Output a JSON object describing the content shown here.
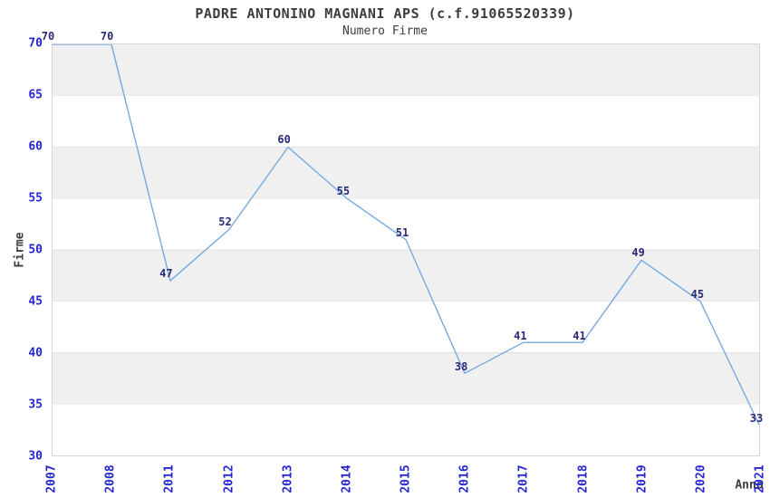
{
  "chart_data": {
    "type": "line",
    "title": "PADRE ANTONINO MAGNANI APS (c.f.91065520339)",
    "subtitle": "Numero Firme",
    "xlabel": "Anno",
    "ylabel": "Firme",
    "categories": [
      "2007",
      "2008",
      "2011",
      "2012",
      "2013",
      "2014",
      "2015",
      "2016",
      "2017",
      "2018",
      "2019",
      "2020",
      "2021"
    ],
    "values": [
      70,
      70,
      47,
      52,
      60,
      55,
      51,
      38,
      41,
      41,
      49,
      45,
      33
    ],
    "data_labels_visible": true,
    "ylim": [
      30,
      70
    ],
    "yticks": [
      30,
      35,
      40,
      45,
      50,
      55,
      60,
      65,
      70
    ],
    "grid": "horizontal-bands-alternating",
    "legend": "none",
    "markers": "none",
    "colors": {
      "line": "#74a9e2",
      "data_label": "#29297a",
      "tick_label": "#2626d0",
      "text": "#3d3d3d",
      "band": "#f0f0f0",
      "band_alt": "#ffffff",
      "gridline": "#e2e2e2",
      "plot_border": "#d5d5d5",
      "background": "#ffffff"
    }
  }
}
